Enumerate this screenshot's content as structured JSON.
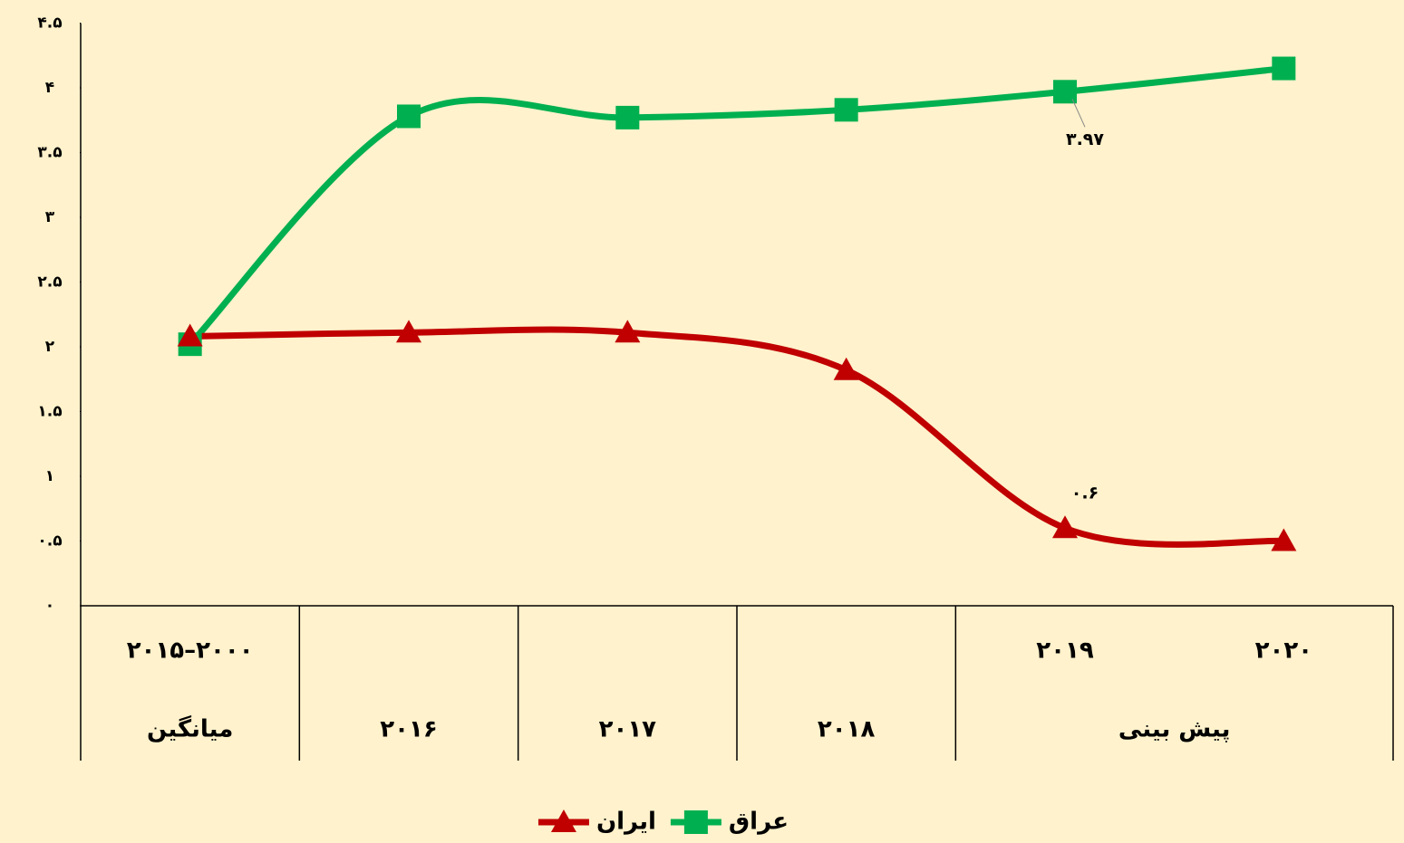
{
  "chart_data": {
    "type": "line",
    "categories": [
      "۲۰۱۵–۲۰۰۰",
      null,
      null,
      null,
      "۲۰۱۹",
      "۲۰۲۰"
    ],
    "category_groups": [
      {
        "label": "میانگین",
        "count": 1
      },
      {
        "label": "۲۰۱۶",
        "count": 1
      },
      {
        "label": "۲۰۱۷",
        "count": 1
      },
      {
        "label": "۲۰۱۸",
        "count": 1
      },
      {
        "label": "پیش بینی",
        "count": 2
      }
    ],
    "series": [
      {
        "name": "عراق",
        "color": "#00b050",
        "marker": "square",
        "values": [
          2.02,
          3.78,
          3.77,
          3.83,
          3.97,
          4.15
        ],
        "value_labels": [
          null,
          null,
          null,
          null,
          "۳.۹۷",
          null
        ]
      },
      {
        "name": "ایران",
        "color": "#c00000",
        "marker": "triangle",
        "values": [
          2.08,
          2.11,
          2.11,
          1.82,
          0.6,
          0.5
        ],
        "value_labels": [
          null,
          null,
          null,
          null,
          "۰.۶",
          null
        ]
      }
    ],
    "ylim": [
      0,
      4.5
    ],
    "yticks": [
      {
        "value": 0,
        "label": "۰"
      },
      {
        "value": 0.5,
        "label": "۰.۵"
      },
      {
        "value": 1,
        "label": "۱"
      },
      {
        "value": 1.5,
        "label": "۱.۵"
      },
      {
        "value": 2,
        "label": "۲"
      },
      {
        "value": 2.5,
        "label": "۲.۵"
      },
      {
        "value": 3,
        "label": "۳"
      },
      {
        "value": 3.5,
        "label": "۳.۵"
      },
      {
        "value": 4,
        "label": "۴"
      },
      {
        "value": 4.5,
        "label": "۴.۵"
      }
    ],
    "smooth": true,
    "legend": "bottom"
  }
}
